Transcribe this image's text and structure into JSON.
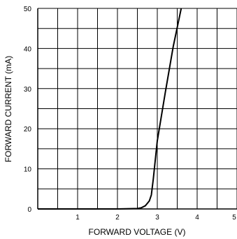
{
  "chart_data": {
    "type": "line",
    "title": "",
    "xlabel": "FORWARD VOLTAGE (V)",
    "ylabel": "FORWARD CURRENT (mA)",
    "xlim": [
      0,
      5
    ],
    "ylim": [
      0,
      50
    ],
    "x_ticks": [
      1,
      2,
      3,
      4,
      5
    ],
    "y_ticks": [
      0,
      10,
      20,
      30,
      40,
      50
    ],
    "x_grid_step": 0.5,
    "y_grid_step": 5,
    "grid": true,
    "legend": "none",
    "line_color": "#000000",
    "series": [
      {
        "x": [
          0,
          1.0,
          2.0,
          2.5,
          2.6,
          2.7,
          2.8,
          2.85,
          2.9,
          3.0,
          3.2,
          3.4,
          3.6
        ],
        "y": [
          0,
          0,
          0,
          0.1,
          0.3,
          0.8,
          2.0,
          3.5,
          7.5,
          17,
          29,
          40.5,
          50
        ]
      }
    ]
  }
}
